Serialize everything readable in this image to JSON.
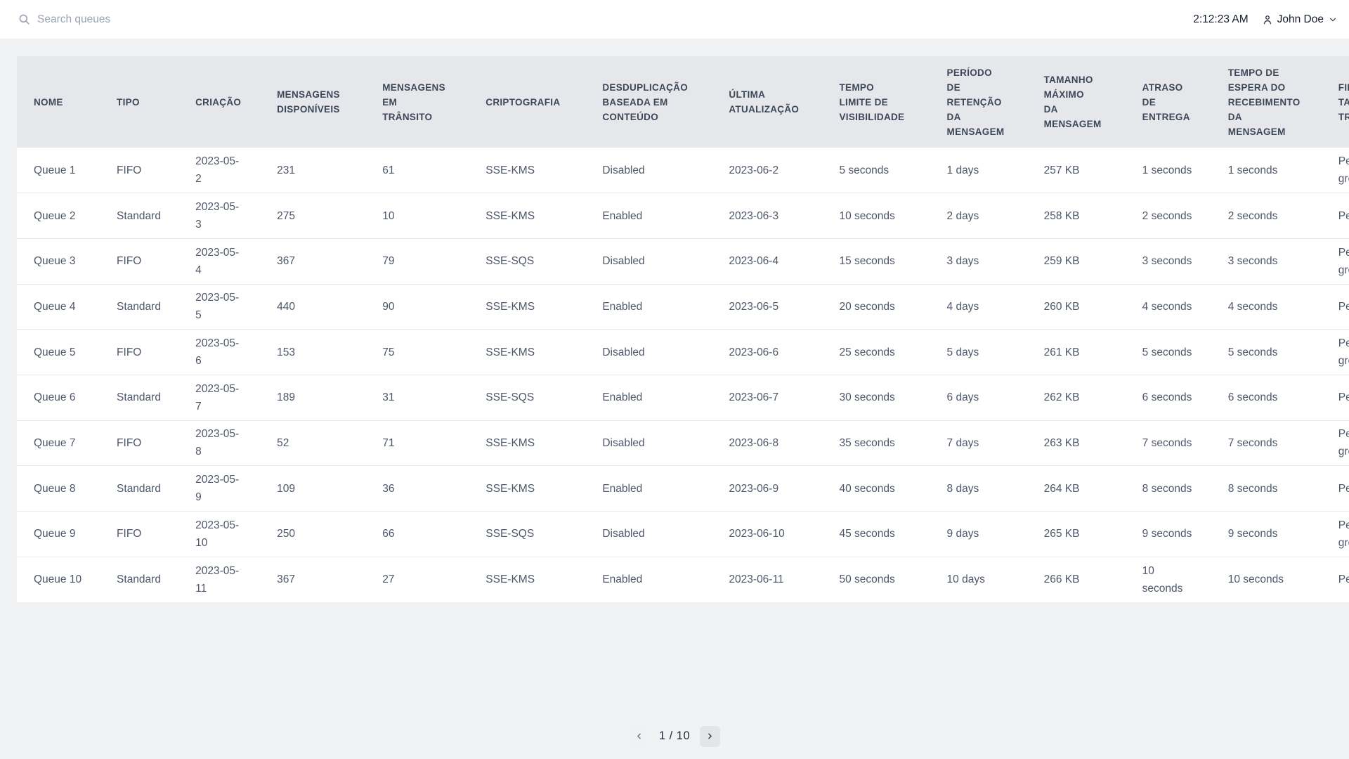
{
  "topbar": {
    "search_placeholder": "Search queues",
    "time": "2:12:23 AM",
    "user_name": "John Doe"
  },
  "table": {
    "columns": [
      {
        "id": "nome",
        "label": "NOME"
      },
      {
        "id": "tipo",
        "label": "TIPO"
      },
      {
        "id": "criacao",
        "label": "CRIAÇÃO"
      },
      {
        "id": "disponiveis",
        "label": "MENSAGENS\nDISPONÍVEIS"
      },
      {
        "id": "transito",
        "label": "MENSAGENS\nEM\nTRÂNSITO"
      },
      {
        "id": "criptografia",
        "label": "CRIPTOGRAFIA"
      },
      {
        "id": "desduplicacao",
        "label": "DESDUPLICAÇÃO\nBASEADA EM\nCONTEÚDO"
      },
      {
        "id": "atualizacao",
        "label": "ÚLTIMA\nATUALIZAÇÃO"
      },
      {
        "id": "visibilidade",
        "label": "TEMPO\nLIMITE DE\nVISIBILIDADE"
      },
      {
        "id": "retencao",
        "label": "PERÍODO\nDE\nRETENÇÃO\nDA\nMENSAGEM"
      },
      {
        "id": "tamanho",
        "label": "TAMANHO\nMÁXIMO\nDA\nMENSAGEM"
      },
      {
        "id": "atraso",
        "label": "ATRASO\nDE\nENTREGA"
      },
      {
        "id": "espera",
        "label": "TEMPO DE\nESPERA DO\nRECEBIMENTO\nDA\nMENSAGEM"
      },
      {
        "id": "fifo",
        "label": "FIFO\nTAXA DE\nTRANSFERÊNCIA"
      }
    ],
    "rows": [
      {
        "nome": "Queue 1",
        "tipo": "FIFO",
        "criacao": "2023-05-2",
        "disponiveis": "231",
        "transito": "61",
        "criptografia": "SSE-KMS",
        "desduplicacao": "Disabled",
        "atualizacao": "2023-06-2",
        "visibilidade": "5 seconds",
        "retencao": "1 days",
        "tamanho": "257 KB",
        "atraso": "1 seconds",
        "espera": "1 seconds",
        "fifo": "Per message\ngroup ID"
      },
      {
        "nome": "Queue 2",
        "tipo": "Standard",
        "criacao": "2023-05-3",
        "disponiveis": "275",
        "transito": "10",
        "criptografia": "SSE-KMS",
        "desduplicacao": "Enabled",
        "atualizacao": "2023-06-3",
        "visibilidade": "10 seconds",
        "retencao": "2 days",
        "tamanho": "258 KB",
        "atraso": "2 seconds",
        "espera": "2 seconds",
        "fifo": "Per queue"
      },
      {
        "nome": "Queue 3",
        "tipo": "FIFO",
        "criacao": "2023-05-4",
        "disponiveis": "367",
        "transito": "79",
        "criptografia": "SSE-SQS",
        "desduplicacao": "Disabled",
        "atualizacao": "2023-06-4",
        "visibilidade": "15 seconds",
        "retencao": "3 days",
        "tamanho": "259 KB",
        "atraso": "3 seconds",
        "espera": "3 seconds",
        "fifo": "Per message\ngroup ID"
      },
      {
        "nome": "Queue 4",
        "tipo": "Standard",
        "criacao": "2023-05-5",
        "disponiveis": "440",
        "transito": "90",
        "criptografia": "SSE-KMS",
        "desduplicacao": "Enabled",
        "atualizacao": "2023-06-5",
        "visibilidade": "20 seconds",
        "retencao": "4 days",
        "tamanho": "260 KB",
        "atraso": "4 seconds",
        "espera": "4 seconds",
        "fifo": "Per queue"
      },
      {
        "nome": "Queue 5",
        "tipo": "FIFO",
        "criacao": "2023-05-6",
        "disponiveis": "153",
        "transito": "75",
        "criptografia": "SSE-KMS",
        "desduplicacao": "Disabled",
        "atualizacao": "2023-06-6",
        "visibilidade": "25 seconds",
        "retencao": "5 days",
        "tamanho": "261 KB",
        "atraso": "5 seconds",
        "espera": "5 seconds",
        "fifo": "Per message\ngroup ID"
      },
      {
        "nome": "Queue 6",
        "tipo": "Standard",
        "criacao": "2023-05-7",
        "disponiveis": "189",
        "transito": "31",
        "criptografia": "SSE-SQS",
        "desduplicacao": "Enabled",
        "atualizacao": "2023-06-7",
        "visibilidade": "30 seconds",
        "retencao": "6 days",
        "tamanho": "262 KB",
        "atraso": "6 seconds",
        "espera": "6 seconds",
        "fifo": "Per queue"
      },
      {
        "nome": "Queue 7",
        "tipo": "FIFO",
        "criacao": "2023-05-8",
        "disponiveis": "52",
        "transito": "71",
        "criptografia": "SSE-KMS",
        "desduplicacao": "Disabled",
        "atualizacao": "2023-06-8",
        "visibilidade": "35 seconds",
        "retencao": "7 days",
        "tamanho": "263 KB",
        "atraso": "7 seconds",
        "espera": "7 seconds",
        "fifo": "Per message\ngroup ID"
      },
      {
        "nome": "Queue 8",
        "tipo": "Standard",
        "criacao": "2023-05-9",
        "disponiveis": "109",
        "transito": "36",
        "criptografia": "SSE-KMS",
        "desduplicacao": "Enabled",
        "atualizacao": "2023-06-9",
        "visibilidade": "40 seconds",
        "retencao": "8 days",
        "tamanho": "264 KB",
        "atraso": "8 seconds",
        "espera": "8 seconds",
        "fifo": "Per queue"
      },
      {
        "nome": "Queue 9",
        "tipo": "FIFO",
        "criacao": "2023-05-10",
        "disponiveis": "250",
        "transito": "66",
        "criptografia": "SSE-SQS",
        "desduplicacao": "Disabled",
        "atualizacao": "2023-06-10",
        "visibilidade": "45 seconds",
        "retencao": "9 days",
        "tamanho": "265 KB",
        "atraso": "9 seconds",
        "espera": "9 seconds",
        "fifo": "Per message\ngroup ID"
      },
      {
        "nome": "Queue 10",
        "tipo": "Standard",
        "criacao": "2023-05-11",
        "disponiveis": "367",
        "transito": "27",
        "criptografia": "SSE-KMS",
        "desduplicacao": "Enabled",
        "atualizacao": "2023-06-11",
        "visibilidade": "50 seconds",
        "retencao": "10 days",
        "tamanho": "266 KB",
        "atraso": "10 seconds",
        "espera": "10 seconds",
        "fifo": "Per queue"
      }
    ]
  },
  "pagination": {
    "page_label": "1 / 10"
  }
}
